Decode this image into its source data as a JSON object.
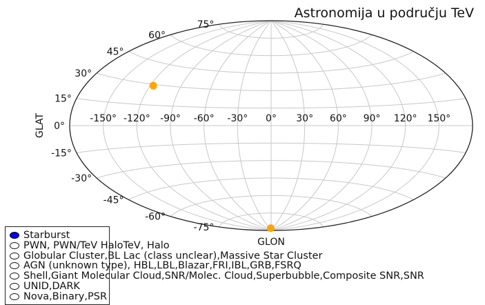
{
  "chart_data": {
    "type": "scatter",
    "projection": "aitoff",
    "title": "Astronomija u području TeV",
    "xlabel": "GLON",
    "ylabel": "GLAT",
    "xlim": [
      -180,
      180
    ],
    "ylim": [
      -90,
      90
    ],
    "grid": true,
    "legend_placement": "lower-left",
    "lon_ticks": [
      -150,
      -120,
      -90,
      -60,
      -30,
      0,
      30,
      60,
      90,
      120,
      150
    ],
    "lon_tick_labels": [
      "-150°",
      "-120°",
      "-90°",
      "-60°",
      "-30°",
      "0°",
      "30°",
      "60°",
      "90°",
      "120°",
      "150°"
    ],
    "lat_ticks": [
      75,
      60,
      45,
      30,
      15,
      0,
      -15,
      -30,
      -45,
      -60,
      -75
    ],
    "lat_tick_labels": [
      "75°",
      "60°",
      "45°",
      "30°",
      "15°",
      "0°",
      "-15°",
      "-30°",
      "-45°",
      "-60°",
      "-75°"
    ],
    "point_color": "#FFA500",
    "points": [
      {
        "x": -117,
        "y": 29
      },
      {
        "x": -6,
        "y": -88
      }
    ],
    "legend": [
      {
        "label": "Starburst",
        "filled": true,
        "color": "#0000FF"
      },
      {
        "label": "PWN, PWN/TeV HaloTeV, Halo",
        "filled": false
      },
      {
        "label": "Globular Cluster,BL Lac (class unclear),Massive Star Cluster",
        "filled": false
      },
      {
        "label": "AGN (unknown type), HBL,LBL,Blazar,FRI,IBL,GRB,FSRQ",
        "filled": false
      },
      {
        "label": "Shell,Giant Molecular Cloud,SNR/Molec. Cloud,Superbubble,Composite SNR,SNR",
        "filled": false
      },
      {
        "label": "UNID,DARK",
        "filled": false
      },
      {
        "label": "Nova,Binary,PSR",
        "filled": false
      }
    ]
  }
}
